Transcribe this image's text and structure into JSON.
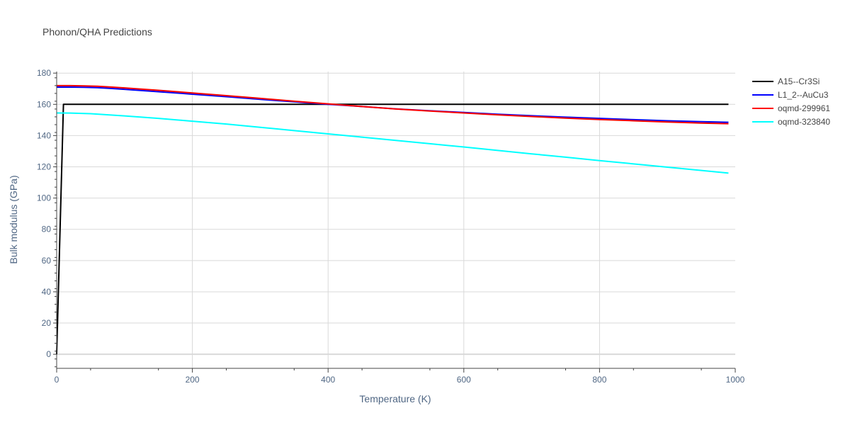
{
  "chart_data": {
    "type": "line",
    "title": "Phonon/QHA Predictions",
    "xlabel": "Temperature (K)",
    "ylabel": "Bulk modulus (GPa)",
    "xlim": [
      0,
      1000
    ],
    "ylim": [
      -9,
      181
    ],
    "x_ticks": [
      0,
      200,
      400,
      600,
      800,
      1000
    ],
    "y_ticks": [
      0,
      20,
      40,
      60,
      80,
      100,
      120,
      140,
      160,
      180
    ],
    "grid": true,
    "legend_position": "top-right",
    "series": [
      {
        "name": "A15--Cr3Si",
        "color": "#000000",
        "x": [
          0,
          10,
          20,
          100,
          200,
          300,
          400,
          500,
          600,
          700,
          800,
          900,
          990
        ],
        "y": [
          0,
          160,
          160,
          160,
          160,
          160,
          160,
          160,
          160,
          160,
          160,
          160,
          160
        ]
      },
      {
        "name": "L1_2--AuCu3",
        "color": "#0000ff",
        "x": [
          0,
          20,
          40,
          60,
          80,
          100,
          150,
          200,
          250,
          300,
          350,
          400,
          450,
          500,
          550,
          600,
          650,
          700,
          750,
          800,
          850,
          900,
          950,
          990
        ],
        "y": [
          171,
          171,
          170.9,
          170.7,
          170.2,
          169.6,
          168.1,
          166.5,
          164.9,
          163.2,
          161.6,
          160.0,
          158.6,
          157.1,
          155.9,
          154.8,
          153.7,
          152.7,
          151.8,
          151.0,
          150.2,
          149.5,
          148.9,
          148.5
        ]
      },
      {
        "name": "oqmd-299961",
        "color": "#ff0000",
        "x": [
          0,
          20,
          40,
          60,
          80,
          100,
          150,
          200,
          250,
          300,
          350,
          400,
          450,
          500,
          550,
          600,
          650,
          700,
          750,
          800,
          850,
          900,
          950,
          990
        ],
        "y": [
          172,
          172,
          171.8,
          171.6,
          171.1,
          170.5,
          169.0,
          167.3,
          165.6,
          163.8,
          162.0,
          160.3,
          158.6,
          157.0,
          155.7,
          154.5,
          153.3,
          152.2,
          151.2,
          150.3,
          149.5,
          148.7,
          148.0,
          147.6
        ]
      },
      {
        "name": "oqmd-323840",
        "color": "#00ffff",
        "x": [
          0,
          20,
          50,
          100,
          150,
          200,
          250,
          300,
          350,
          400,
          450,
          500,
          550,
          600,
          650,
          700,
          750,
          800,
          850,
          900,
          950,
          990
        ],
        "y": [
          154.5,
          154.4,
          154.0,
          152.6,
          151.0,
          149.2,
          147.4,
          145.3,
          143.2,
          141.1,
          139.0,
          136.9,
          134.8,
          132.7,
          130.5,
          128.3,
          126.2,
          124.0,
          121.9,
          119.8,
          117.7,
          116.0
        ]
      }
    ]
  }
}
